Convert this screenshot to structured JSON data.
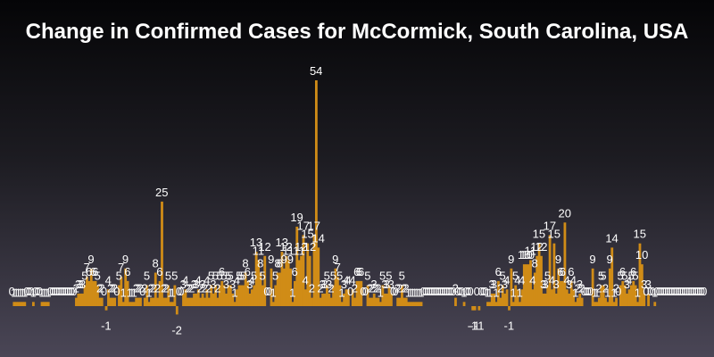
{
  "chart_data": {
    "type": "bar",
    "title": "Change in Confirmed Cases for McCormick, South Carolina, USA",
    "xlabel": "",
    "ylabel": "",
    "ylim": [
      -2,
      54
    ],
    "grid": false,
    "legend": "none",
    "colors": {
      "bar": "#d08c17",
      "label": "#ffffff"
    },
    "values": [
      0,
      1,
      1,
      1,
      1,
      1,
      1,
      0,
      0,
      0,
      1,
      0,
      0,
      0,
      1,
      1,
      1,
      1,
      0,
      0,
      0,
      0,
      0,
      0,
      0,
      0,
      0,
      0,
      0,
      0,
      2,
      3,
      3,
      3,
      5,
      7,
      6,
      9,
      6,
      6,
      5,
      2,
      2,
      0,
      -1,
      4,
      2,
      2,
      2,
      0,
      5,
      7,
      1,
      9,
      6,
      1,
      1,
      1,
      2,
      2,
      2,
      0,
      2,
      5,
      1,
      2,
      2,
      8,
      2,
      6,
      25,
      2,
      2,
      5,
      1,
      1,
      5,
      -2,
      0,
      0,
      3,
      4,
      2,
      2,
      2,
      3,
      3,
      4,
      2,
      3,
      2,
      4,
      2,
      5,
      3,
      5,
      2,
      5,
      6,
      5,
      3,
      5,
      5,
      3,
      1,
      4,
      5,
      5,
      5,
      8,
      6,
      3,
      4,
      5,
      13,
      11,
      8,
      5,
      12,
      0,
      0,
      9,
      1,
      5,
      8,
      8,
      13,
      9,
      12,
      11,
      9,
      1,
      6,
      19,
      11,
      12,
      17,
      4,
      15,
      12,
      2,
      17,
      54,
      14,
      2,
      3,
      3,
      5,
      3,
      2,
      5,
      9,
      7,
      5,
      1,
      3,
      4,
      4,
      0,
      4,
      2,
      6,
      6,
      6,
      0,
      0,
      5,
      2,
      2,
      3,
      2,
      2,
      1,
      5,
      3,
      3,
      5,
      3,
      0,
      0,
      2,
      2,
      5,
      2,
      2,
      1,
      1,
      1,
      1,
      1,
      1,
      1,
      0,
      0,
      0,
      0,
      0,
      0,
      0,
      0,
      0,
      0,
      0,
      0,
      0,
      0,
      0,
      2,
      0,
      0,
      0,
      1,
      0,
      0,
      0,
      -1,
      -1,
      0,
      -1,
      0,
      0,
      0,
      1,
      1,
      3,
      3,
      1,
      6,
      2,
      5,
      3,
      4,
      -1,
      9,
      1,
      5,
      4,
      1,
      4,
      10,
      10,
      10,
      11,
      4,
      8,
      12,
      15,
      12,
      3,
      3,
      5,
      17,
      4,
      15,
      3,
      9,
      6,
      6,
      20,
      4,
      3,
      6,
      4,
      1,
      2,
      3,
      2,
      0,
      0,
      0,
      0,
      9,
      1,
      1,
      2,
      5,
      5,
      2,
      1,
      9,
      14,
      1,
      2,
      0,
      5,
      6,
      5,
      3,
      4,
      5,
      6,
      5,
      1,
      15,
      10,
      3,
      0,
      3,
      0,
      0,
      1,
      0,
      0,
      0,
      0,
      0,
      0,
      0,
      0,
      0,
      0,
      0,
      0,
      0,
      0,
      0,
      0,
      0,
      0,
      0,
      0,
      0,
      0,
      0
    ]
  }
}
